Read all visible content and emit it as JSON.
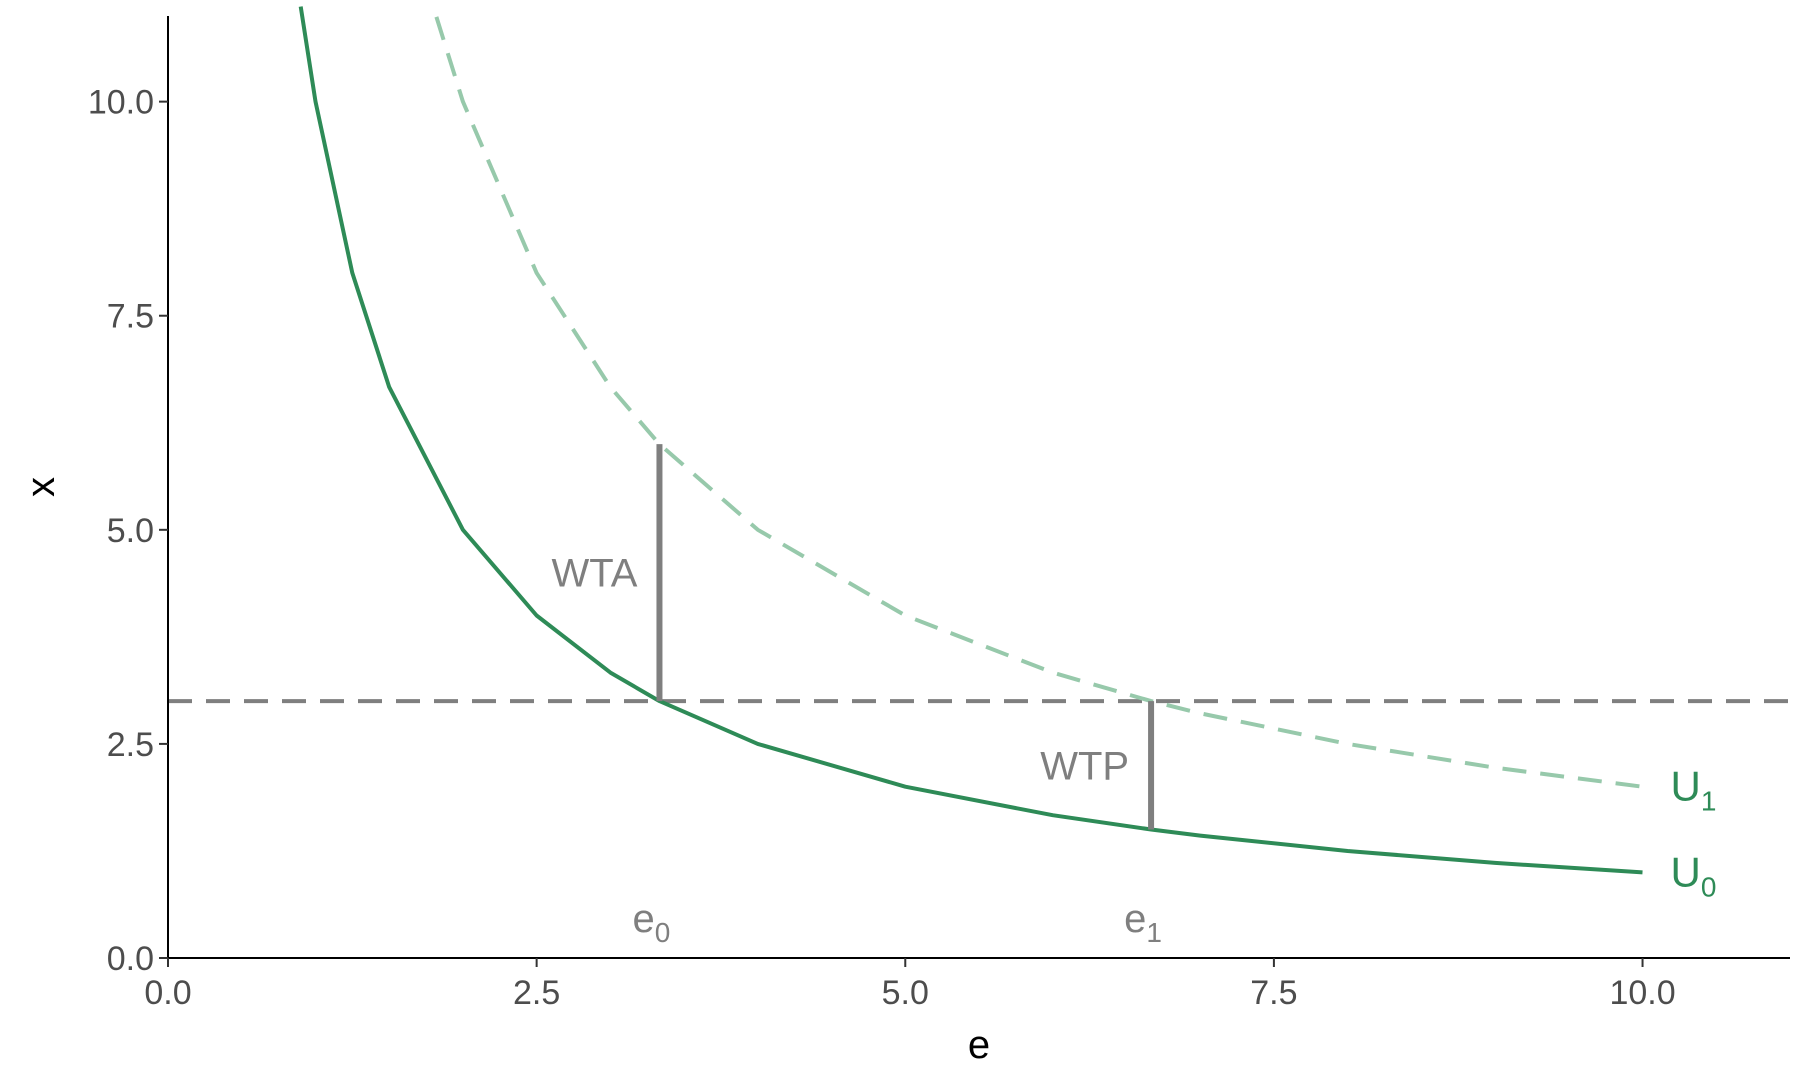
{
  "chart_data": {
    "type": "line",
    "title": "",
    "xlabel": "e",
    "ylabel": "x",
    "xlim": [
      0,
      11
    ],
    "ylim": [
      0,
      11
    ],
    "x_ticks": [
      0,
      2.5,
      5,
      7.5,
      10
    ],
    "x_tick_labels": [
      "0.0",
      "2.5",
      "5.0",
      "7.5",
      "10.0"
    ],
    "y_ticks": [
      0,
      2.5,
      5,
      7.5,
      10
    ],
    "y_tick_labels": [
      "0.0",
      "2.5",
      "5.0",
      "7.5",
      "10.0"
    ],
    "grid": false,
    "series": [
      {
        "name": "U0",
        "label_main": "U",
        "label_sub": "0",
        "style": "solid",
        "color": "#2e8b57",
        "x": [
          0.9,
          1,
          1.25,
          1.5,
          2,
          2.5,
          3,
          3.333,
          4,
          5,
          6,
          6.667,
          7,
          8,
          9,
          10
        ],
        "y": [
          11.11,
          10,
          8,
          6.667,
          5,
          4,
          3.333,
          3,
          2.5,
          2,
          1.667,
          1.5,
          1.429,
          1.25,
          1.111,
          1
        ]
      },
      {
        "name": "U1",
        "label_main": "U",
        "label_sub": "1",
        "style": "dashed",
        "color": "#97c9ab",
        "x": [
          1.82,
          2,
          2.5,
          3,
          3.333,
          4,
          5,
          6,
          6.667,
          7,
          8,
          9,
          10
        ],
        "y": [
          10.99,
          10,
          8,
          6.667,
          6,
          5,
          4,
          3.333,
          3,
          2.857,
          2.5,
          2.222,
          2
        ]
      }
    ],
    "reference_line": {
      "y": 3,
      "style": "dashed",
      "color": "#7f7f7f"
    },
    "segments": [
      {
        "label": "WTA",
        "x": 3.333,
        "y_from": 3,
        "y_to": 6
      },
      {
        "label": "WTP",
        "x": 6.667,
        "y_from": 1.5,
        "y_to": 3
      }
    ],
    "point_labels": [
      {
        "main": "e",
        "sub": "0",
        "x": 3.333
      },
      {
        "main": "e",
        "sub": "1",
        "x": 6.667
      }
    ]
  }
}
